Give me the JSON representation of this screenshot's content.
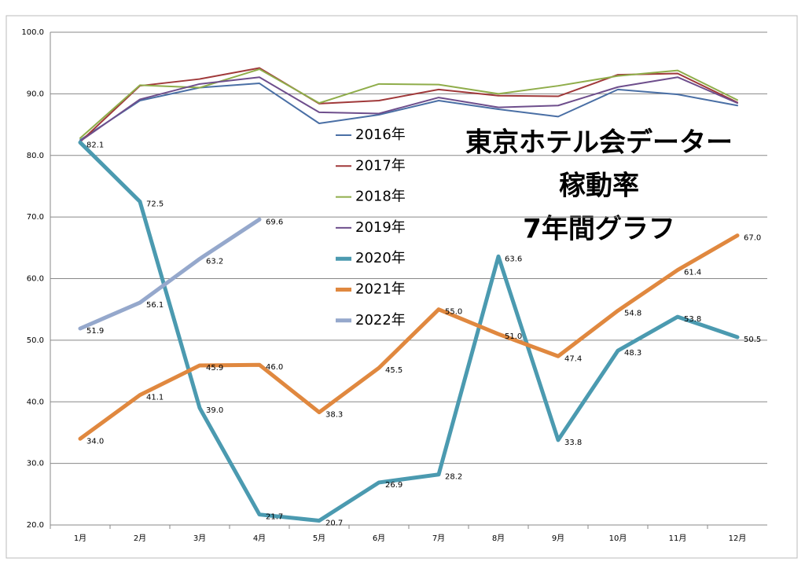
{
  "chart_data": {
    "type": "line",
    "title": [
      "東京ホテル会データー",
      "稼動率",
      "7年間グラフ"
    ],
    "categories": [
      "1月",
      "2月",
      "3月",
      "4月",
      "5月",
      "6月",
      "7月",
      "8月",
      "9月",
      "10月",
      "11月",
      "12月"
    ],
    "ylim": [
      20,
      100
    ],
    "yticks": [
      {
        "value": 20,
        "label": "20.0"
      },
      {
        "value": 30,
        "label": "30.0"
      },
      {
        "value": 40,
        "label": "40.0"
      },
      {
        "value": 50,
        "label": "50.0"
      },
      {
        "value": 60,
        "label": "60.0"
      },
      {
        "value": 70,
        "label": "70.0"
      },
      {
        "value": 80,
        "label": "80.0"
      },
      {
        "value": 90,
        "label": "90.0"
      },
      {
        "value": 100,
        "label": "100.0"
      }
    ],
    "grid": true,
    "series": [
      {
        "name": "2016年",
        "color": "#4a6fa5",
        "values": [
          82.5,
          88.9,
          91.0,
          91.7,
          85.2,
          86.6,
          88.9,
          87.5,
          86.3,
          90.7,
          89.9,
          88.1
        ]
      },
      {
        "name": "2017年",
        "color": "#a0393a",
        "values": [
          82.2,
          91.3,
          92.4,
          94.2,
          88.4,
          88.9,
          90.7,
          89.7,
          89.6,
          93.1,
          93.3,
          88.6
        ]
      },
      {
        "name": "2018年",
        "color": "#8fad4a",
        "values": [
          82.8,
          91.4,
          91.0,
          94.0,
          88.5,
          91.6,
          91.5,
          90.0,
          91.3,
          92.9,
          93.8,
          89.0
        ]
      },
      {
        "name": "2019年",
        "color": "#6e4e8c",
        "values": [
          82.3,
          89.1,
          91.6,
          92.7,
          87.0,
          86.8,
          89.4,
          87.8,
          88.1,
          91.1,
          92.7,
          88.5
        ]
      },
      {
        "name": "2020年",
        "color": "#4b9ab0",
        "values": [
          82.1,
          72.5,
          39.0,
          21.7,
          20.7,
          26.9,
          28.2,
          63.6,
          33.8,
          48.3,
          53.8,
          50.5
        ],
        "value_labels": [
          "82.1",
          "72.5",
          "39.0",
          "21.7",
          "20.7",
          "26.9",
          "28.2",
          "63.6",
          "33.8",
          "48.3",
          "53.8",
          "50.5"
        ]
      },
      {
        "name": "2021年",
        "color": "#e0883f",
        "values": [
          34.0,
          41.1,
          45.9,
          46.0,
          38.3,
          45.5,
          55.0,
          51.0,
          47.4,
          54.8,
          61.4,
          67.0
        ],
        "value_labels": [
          "34.0",
          "41.1",
          "45.9",
          "46.0",
          "38.3",
          "45.5",
          "55.0",
          "51.0",
          "47.4",
          "54.8",
          "61.4",
          "67.0"
        ]
      },
      {
        "name": "2022年",
        "color": "#95a8cc",
        "values": [
          51.9,
          56.1,
          63.2,
          69.6,
          null,
          null,
          null,
          null,
          null,
          null,
          null,
          null
        ],
        "value_labels": [
          "51.9",
          "56.1",
          "63.2",
          "69.6",
          null,
          null,
          null,
          null,
          null,
          null,
          null,
          null
        ]
      }
    ]
  }
}
